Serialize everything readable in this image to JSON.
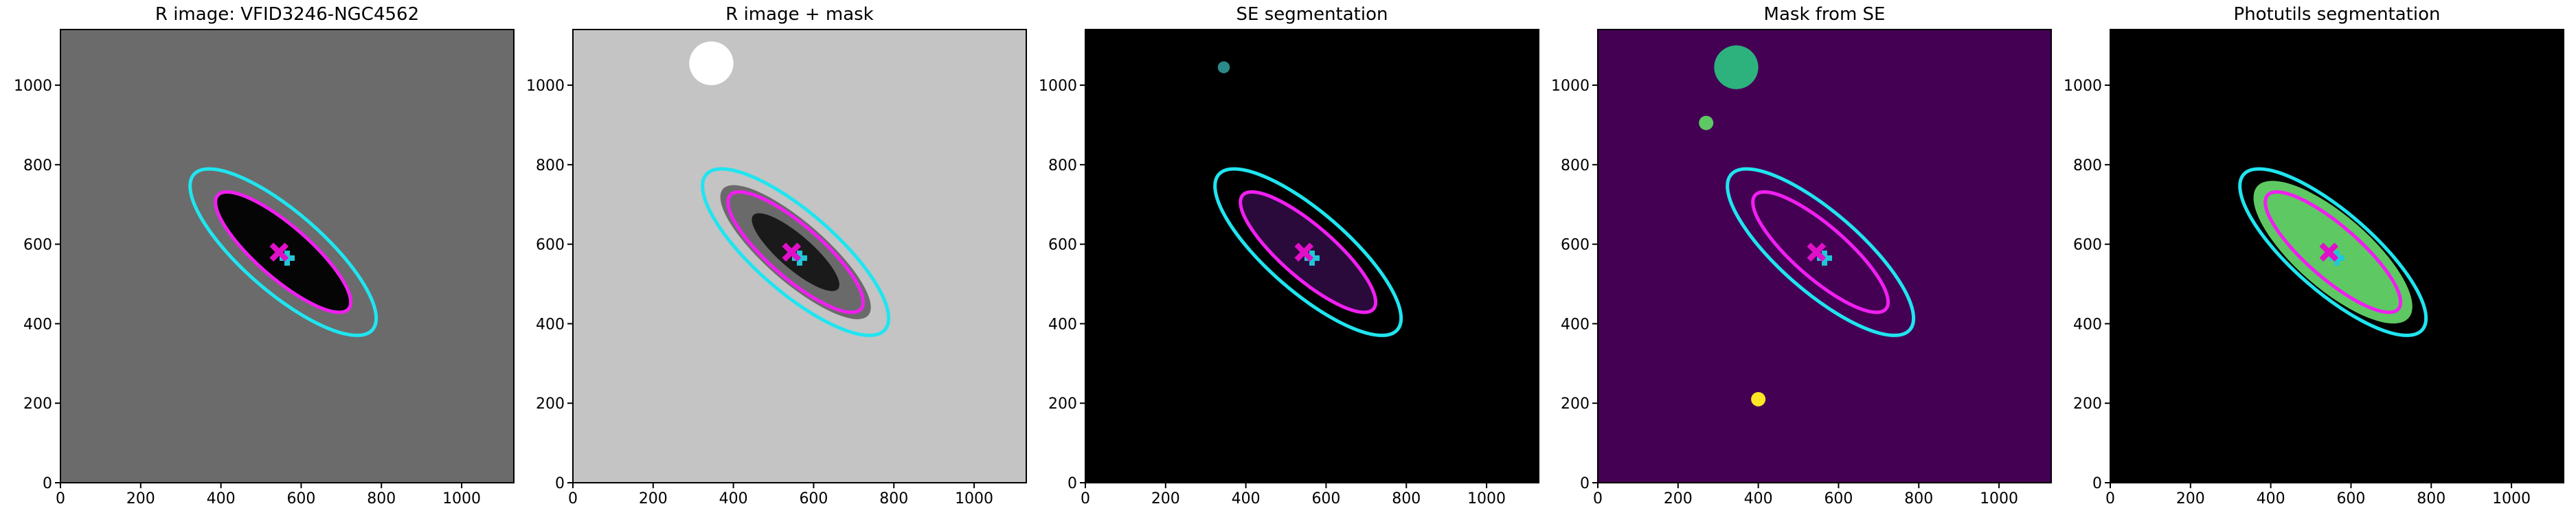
{
  "chart_data": [
    {
      "type": "image",
      "title": "R image: VFID3246-NGC4562",
      "background": "#6b6b6b",
      "xlim": [
        0,
        1130
      ],
      "ylim": [
        0,
        1140
      ],
      "xticks": [
        0,
        200,
        400,
        600,
        800,
        1000
      ],
      "yticks": [
        0,
        200,
        400,
        600,
        800,
        1000
      ],
      "ellipses": [
        {
          "center_x": 555,
          "center_y": 580,
          "a": 216,
          "b": 66,
          "angle": -41,
          "fill": "#050505",
          "stroke": "none"
        },
        {
          "center_x": 555,
          "center_y": 580,
          "a": 295,
          "b": 100,
          "angle": -41,
          "fill": "none",
          "stroke": "#1fe5f0"
        },
        {
          "center_x": 555,
          "center_y": 580,
          "a": 216,
          "b": 66,
          "angle": -41,
          "fill": "none",
          "stroke": "#f01ff0"
        }
      ],
      "markers": [
        {
          "shape": "plus",
          "color": "#1fc8d8",
          "x": 565,
          "y": 565
        },
        {
          "shape": "x",
          "color": "#e010c8",
          "x": 545,
          "y": 580
        }
      ]
    },
    {
      "type": "image",
      "title": "R image + mask",
      "background": "#c4c4c4",
      "xlim": [
        0,
        1130
      ],
      "ylim": [
        0,
        1140
      ],
      "xticks": [
        0,
        200,
        400,
        600,
        800,
        1000
      ],
      "yticks": [
        0,
        200,
        400,
        600,
        800,
        1000
      ],
      "ellipses": [
        {
          "center_x": 345,
          "center_y": 1055,
          "a": 55,
          "b": 55,
          "angle": 0,
          "fill": "#ffffff",
          "stroke": "none"
        },
        {
          "center_x": 555,
          "center_y": 580,
          "a": 240,
          "b": 75,
          "angle": -41,
          "fill": "#6a6a6a",
          "stroke": "none"
        },
        {
          "center_x": 555,
          "center_y": 580,
          "a": 140,
          "b": 42,
          "angle": -41,
          "fill": "#1a1a1a",
          "stroke": "none"
        },
        {
          "center_x": 555,
          "center_y": 580,
          "a": 295,
          "b": 100,
          "angle": -41,
          "fill": "none",
          "stroke": "#1fe5f0"
        },
        {
          "center_x": 555,
          "center_y": 580,
          "a": 216,
          "b": 66,
          "angle": -41,
          "fill": "none",
          "stroke": "#f01ff0"
        }
      ],
      "markers": [
        {
          "shape": "plus",
          "color": "#1fc8d8",
          "x": 565,
          "y": 565
        },
        {
          "shape": "x",
          "color": "#e010c8",
          "x": 545,
          "y": 580
        }
      ]
    },
    {
      "type": "image",
      "title": "SE segmentation",
      "background": "#000000",
      "xlim": [
        0,
        1130
      ],
      "ylim": [
        0,
        1140
      ],
      "xticks": [
        0,
        200,
        400,
        600,
        800,
        1000
      ],
      "yticks": [
        0,
        200,
        400,
        600,
        800,
        1000
      ],
      "ellipses": [
        {
          "center_x": 555,
          "center_y": 580,
          "a": 216,
          "b": 66,
          "angle": -41,
          "fill": "#2a0a3a",
          "stroke": "none"
        },
        {
          "center_x": 345,
          "center_y": 1045,
          "a": 15,
          "b": 15,
          "angle": 0,
          "fill": "#2a8a8a",
          "stroke": "none"
        },
        {
          "center_x": 555,
          "center_y": 580,
          "a": 295,
          "b": 100,
          "angle": -41,
          "fill": "none",
          "stroke": "#1fe5f0"
        },
        {
          "center_x": 555,
          "center_y": 580,
          "a": 216,
          "b": 66,
          "angle": -41,
          "fill": "none",
          "stroke": "#f01ff0"
        }
      ],
      "markers": [
        {
          "shape": "plus",
          "color": "#1fc8d8",
          "x": 565,
          "y": 565
        },
        {
          "shape": "x",
          "color": "#e010c8",
          "x": 545,
          "y": 580
        }
      ]
    },
    {
      "type": "image",
      "title": "Mask from SE",
      "background": "#440154",
      "xlim": [
        0,
        1130
      ],
      "ylim": [
        0,
        1140
      ],
      "xticks": [
        0,
        200,
        400,
        600,
        800,
        1000
      ],
      "yticks": [
        0,
        200,
        400,
        600,
        800,
        1000
      ],
      "ellipses": [
        {
          "center_x": 345,
          "center_y": 1045,
          "a": 55,
          "b": 55,
          "angle": 0,
          "fill": "#2db27d",
          "stroke": "none"
        },
        {
          "center_x": 270,
          "center_y": 905,
          "a": 18,
          "b": 18,
          "angle": 0,
          "fill": "#5ec962",
          "stroke": "none"
        },
        {
          "center_x": 400,
          "center_y": 210,
          "a": 18,
          "b": 18,
          "angle": 0,
          "fill": "#fde725",
          "stroke": "none"
        },
        {
          "center_x": 555,
          "center_y": 580,
          "a": 295,
          "b": 100,
          "angle": -41,
          "fill": "none",
          "stroke": "#1fe5f0"
        },
        {
          "center_x": 555,
          "center_y": 580,
          "a": 216,
          "b": 66,
          "angle": -41,
          "fill": "none",
          "stroke": "#f01ff0"
        }
      ],
      "markers": [
        {
          "shape": "plus",
          "color": "#1fc8d8",
          "x": 565,
          "y": 565
        },
        {
          "shape": "x",
          "color": "#e010c8",
          "x": 545,
          "y": 580
        }
      ]
    },
    {
      "type": "image",
      "title": "Photutils segmentation",
      "background": "#000000",
      "xlim": [
        0,
        1130
      ],
      "ylim": [
        0,
        1140
      ],
      "xticks": [
        0,
        200,
        400,
        600,
        800,
        1000
      ],
      "yticks": [
        0,
        200,
        400,
        600,
        800,
        1000
      ],
      "ellipses": [
        {
          "center_x": 555,
          "center_y": 580,
          "a": 250,
          "b": 92,
          "angle": -41,
          "fill": "#5ec962",
          "stroke": "none"
        },
        {
          "center_x": 555,
          "center_y": 580,
          "a": 295,
          "b": 100,
          "angle": -41,
          "fill": "none",
          "stroke": "#1fe5f0"
        },
        {
          "center_x": 555,
          "center_y": 580,
          "a": 216,
          "b": 66,
          "angle": -41,
          "fill": "none",
          "stroke": "#f01ff0"
        }
      ],
      "markers": [
        {
          "shape": "plus",
          "color": "#1fc8d8",
          "x": 565,
          "y": 565
        },
        {
          "shape": "x",
          "color": "#e010c8",
          "x": 545,
          "y": 580
        }
      ]
    }
  ]
}
